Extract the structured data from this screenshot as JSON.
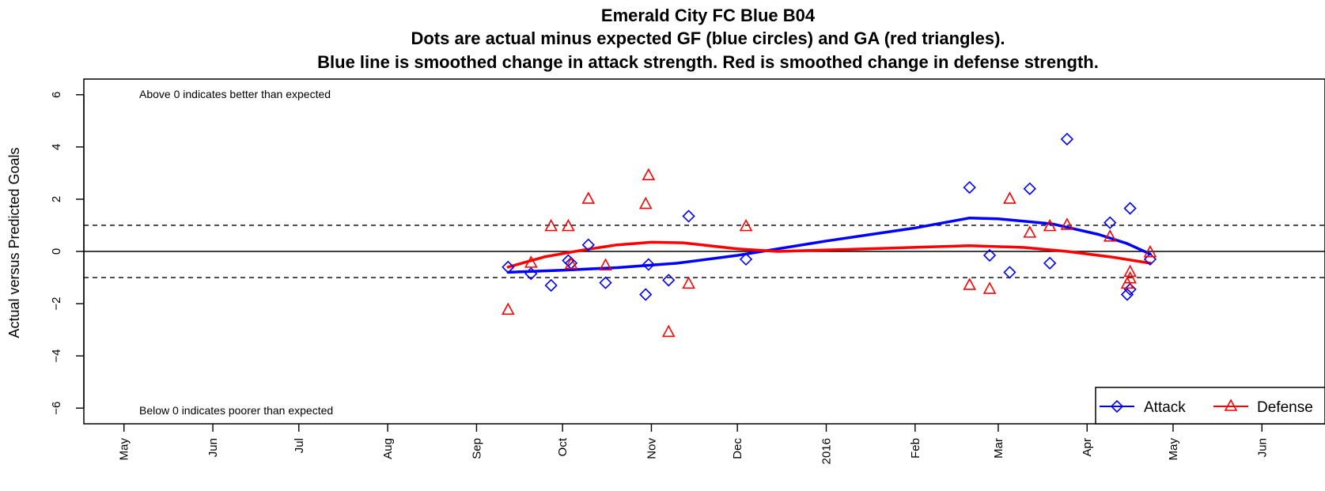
{
  "chart_data": {
    "type": "scatter",
    "title": "Emerald City FC Blue B04",
    "subtitle_lines": [
      "Dots are actual minus expected GF (blue circles) and GA (red triangles).",
      "Blue line is smoothed change in attack strength. Red is smoothed change in defense strength."
    ],
    "xlabel": "",
    "ylabel": "Actual versus Predicted Goals",
    "ylim": [
      -6.6,
      6.6
    ],
    "yticks": [
      -6,
      -4,
      -2,
      0,
      2,
      4,
      6
    ],
    "ytick_labels": [
      "−6",
      "−4",
      "−2",
      "0",
      "2",
      "4",
      "6"
    ],
    "xlim": [
      "2015-04-17",
      "2016-06-23"
    ],
    "xticks": [
      {
        "date": "2015-05-01",
        "label": "May"
      },
      {
        "date": "2015-06-01",
        "label": "Jun"
      },
      {
        "date": "2015-07-01",
        "label": "Jul"
      },
      {
        "date": "2015-08-01",
        "label": "Aug"
      },
      {
        "date": "2015-09-01",
        "label": "Sep"
      },
      {
        "date": "2015-10-01",
        "label": "Oct"
      },
      {
        "date": "2015-11-01",
        "label": "Nov"
      },
      {
        "date": "2015-12-01",
        "label": "Dec"
      },
      {
        "date": "2016-01-01",
        "label": "2016"
      },
      {
        "date": "2016-02-01",
        "label": "Feb"
      },
      {
        "date": "2016-03-01",
        "label": "Mar"
      },
      {
        "date": "2016-04-01",
        "label": "Apr"
      },
      {
        "date": "2016-05-01",
        "label": "May"
      },
      {
        "date": "2016-06-01",
        "label": "Jun"
      }
    ],
    "reference_lines": {
      "solid": [
        0
      ],
      "dashed": [
        1,
        -1
      ]
    },
    "annotations": {
      "top": "Above 0 indicates better than expected",
      "bottom": "Below 0 indicates poorer than expected"
    },
    "legend": {
      "position": "bottom-right",
      "attack_label": "Attack",
      "defense_label": "Defense"
    },
    "series": [
      {
        "name": "Attack",
        "marker": "diamond",
        "color": "#0000FF",
        "points": [
          {
            "x": "2015-09-12",
            "y": -0.6
          },
          {
            "x": "2015-09-20",
            "y": -0.85
          },
          {
            "x": "2015-09-27",
            "y": -1.3
          },
          {
            "x": "2015-10-03",
            "y": -0.35
          },
          {
            "x": "2015-10-04",
            "y": -0.45
          },
          {
            "x": "2015-10-10",
            "y": 0.25
          },
          {
            "x": "2015-10-16",
            "y": -1.2
          },
          {
            "x": "2015-10-30",
            "y": -1.65
          },
          {
            "x": "2015-10-31",
            "y": -0.5
          },
          {
            "x": "2015-11-07",
            "y": -1.1
          },
          {
            "x": "2015-11-14",
            "y": 1.35
          },
          {
            "x": "2015-12-04",
            "y": -0.3
          },
          {
            "x": "2016-02-20",
            "y": 2.45
          },
          {
            "x": "2016-02-27",
            "y": -0.15
          },
          {
            "x": "2016-03-05",
            "y": -0.8
          },
          {
            "x": "2016-03-12",
            "y": 2.4
          },
          {
            "x": "2016-03-19",
            "y": -0.45
          },
          {
            "x": "2016-03-25",
            "y": 4.3
          },
          {
            "x": "2016-04-09",
            "y": 1.1
          },
          {
            "x": "2016-04-15",
            "y": -1.65
          },
          {
            "x": "2016-04-16",
            "y": 1.65
          },
          {
            "x": "2016-04-16",
            "y": -1.45
          },
          {
            "x": "2016-04-23",
            "y": -0.3
          }
        ],
        "smooth": [
          {
            "x": "2015-09-12",
            "y": -0.8
          },
          {
            "x": "2015-10-01",
            "y": -0.72
          },
          {
            "x": "2015-10-20",
            "y": -0.62
          },
          {
            "x": "2015-11-10",
            "y": -0.45
          },
          {
            "x": "2015-12-01",
            "y": -0.15
          },
          {
            "x": "2016-01-01",
            "y": 0.4
          },
          {
            "x": "2016-02-01",
            "y": 0.9
          },
          {
            "x": "2016-02-20",
            "y": 1.28
          },
          {
            "x": "2016-03-01",
            "y": 1.25
          },
          {
            "x": "2016-03-20",
            "y": 1.05
          },
          {
            "x": "2016-04-05",
            "y": 0.65
          },
          {
            "x": "2016-04-15",
            "y": 0.3
          },
          {
            "x": "2016-04-23",
            "y": -0.1
          }
        ]
      },
      {
        "name": "Defense",
        "marker": "triangle",
        "color": "#FF0000",
        "points": [
          {
            "x": "2015-09-12",
            "y": -2.25
          },
          {
            "x": "2015-09-20",
            "y": -0.45
          },
          {
            "x": "2015-09-27",
            "y": 0.95
          },
          {
            "x": "2015-10-03",
            "y": 0.95
          },
          {
            "x": "2015-10-04",
            "y": -0.5
          },
          {
            "x": "2015-10-10",
            "y": 2.0
          },
          {
            "x": "2015-10-16",
            "y": -0.55
          },
          {
            "x": "2015-10-30",
            "y": 1.8
          },
          {
            "x": "2015-10-31",
            "y": 2.9
          },
          {
            "x": "2015-11-07",
            "y": -3.1
          },
          {
            "x": "2015-11-14",
            "y": -1.25
          },
          {
            "x": "2015-12-04",
            "y": 0.95
          },
          {
            "x": "2016-02-20",
            "y": -1.3
          },
          {
            "x": "2016-02-27",
            "y": -1.45
          },
          {
            "x": "2016-03-05",
            "y": 2.0
          },
          {
            "x": "2016-03-12",
            "y": 0.7
          },
          {
            "x": "2016-03-19",
            "y": 0.95
          },
          {
            "x": "2016-03-25",
            "y": 1.0
          },
          {
            "x": "2016-04-09",
            "y": 0.55
          },
          {
            "x": "2016-04-15",
            "y": -1.25
          },
          {
            "x": "2016-04-16",
            "y": -0.8
          },
          {
            "x": "2016-04-16",
            "y": -1.05
          },
          {
            "x": "2016-04-23",
            "y": -0.05
          }
        ],
        "smooth": [
          {
            "x": "2015-09-12",
            "y": -0.6
          },
          {
            "x": "2015-09-25",
            "y": -0.2
          },
          {
            "x": "2015-10-08",
            "y": 0.05
          },
          {
            "x": "2015-10-20",
            "y": 0.25
          },
          {
            "x": "2015-11-01",
            "y": 0.35
          },
          {
            "x": "2015-11-12",
            "y": 0.33
          },
          {
            "x": "2015-12-01",
            "y": 0.1
          },
          {
            "x": "2015-12-15",
            "y": 0.0
          },
          {
            "x": "2016-01-15",
            "y": 0.1
          },
          {
            "x": "2016-02-20",
            "y": 0.22
          },
          {
            "x": "2016-03-10",
            "y": 0.15
          },
          {
            "x": "2016-03-25",
            "y": 0.0
          },
          {
            "x": "2016-04-10",
            "y": -0.22
          },
          {
            "x": "2016-04-23",
            "y": -0.45
          }
        ]
      }
    ],
    "colors": {
      "attack": "#0000FF",
      "defense": "#FF0000",
      "axis": "#000000"
    }
  }
}
